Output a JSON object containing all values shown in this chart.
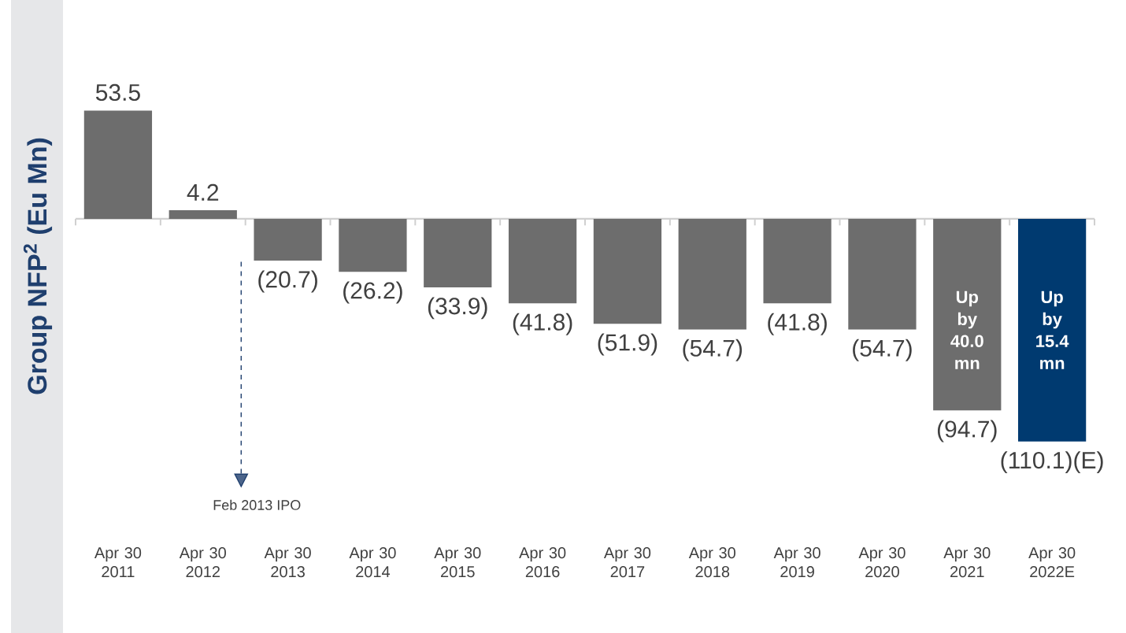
{
  "chart_data": {
    "type": "bar",
    "ylabel": "Group NFP$^{2}$ (Eu Mn)",
    "categories": [
      "Apr 30 2011",
      "Apr 30 2012",
      "Apr 30 2013",
      "Apr 30 2014",
      "Apr 30 2015",
      "Apr 30 2016",
      "Apr 30 2017",
      "Apr 30 2018",
      "Apr 30 2019",
      "Apr 30 2020",
      "Apr 30 2021",
      "Apr 30 2022E"
    ],
    "values": [
      53.5,
      4.2,
      -20.7,
      -26.2,
      -33.9,
      -41.8,
      -51.9,
      -54.7,
      -41.8,
      -54.7,
      -94.7,
      -110.1
    ],
    "colors": [
      "#6d6d6d",
      "#6d6d6d",
      "#6d6d6d",
      "#6d6d6d",
      "#6d6d6d",
      "#6d6d6d",
      "#6d6d6d",
      "#6d6d6d",
      "#6d6d6d",
      "#6d6d6d",
      "#6d6d6d",
      "#003a70"
    ],
    "value_labels": [
      "53.5",
      "4.2",
      "(20.7)",
      "(26.2)",
      "(33.9)",
      "(41.8)",
      "(51.9)",
      "(54.7)",
      "(41.8)",
      "(54.7)",
      "(94.7)",
      "(110.1)(E)"
    ],
    "annotations": [
      "Feb 2013 IPO",
      "Up by 40.0 mn",
      "Up by 15.4 mn"
    ]
  }
}
